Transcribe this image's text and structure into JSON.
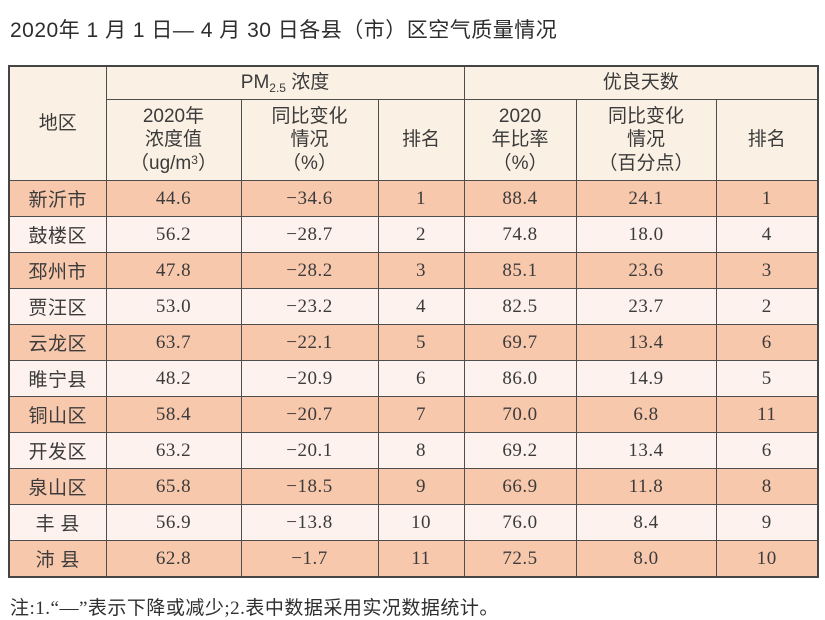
{
  "page": {
    "title": "2020年 1 月 1 日— 4 月 30 日各县（市）区空气质量情况",
    "note": "注:1.“—”表示下降或减少;2.表中数据采用实况数据统计。"
  },
  "colors": {
    "header_bg": "#fbf0e4",
    "row_odd_bg": "#f8c8ad",
    "row_even_bg": "#fdf2ed",
    "border": "#4e4e4e",
    "text": "#3b3b3b"
  },
  "table": {
    "region_header": "地区",
    "pm_group": {
      "prefix": "PM",
      "sub": "2.5",
      "suffix": " 浓度"
    },
    "good_days_group": "优良天数",
    "sub_headers": {
      "pm_value_line1": "2020年",
      "pm_value_line2": "浓度值",
      "unit_prefix": "（ug/m",
      "unit_sup": "3",
      "unit_suffix": "）",
      "pm_change": "同比变化\n情况\n（%）",
      "rank1": "排名",
      "ratio": "2020\n年比率\n（%）",
      "ratio_change": "同比变化\n情况\n（百分点）",
      "rank2": "排名"
    },
    "rows": [
      {
        "region": "新沂市",
        "pm_value": "44.6",
        "pm_change": "−34.6",
        "pm_rank": "1",
        "ratio": "88.4",
        "ratio_change": "24.1",
        "ratio_rank": "1"
      },
      {
        "region": "鼓楼区",
        "pm_value": "56.2",
        "pm_change": "−28.7",
        "pm_rank": "2",
        "ratio": "74.8",
        "ratio_change": "18.0",
        "ratio_rank": "4"
      },
      {
        "region": "邳州市",
        "pm_value": "47.8",
        "pm_change": "−28.2",
        "pm_rank": "3",
        "ratio": "85.1",
        "ratio_change": "23.6",
        "ratio_rank": "3"
      },
      {
        "region": "贾汪区",
        "pm_value": "53.0",
        "pm_change": "−23.2",
        "pm_rank": "4",
        "ratio": "82.5",
        "ratio_change": "23.7",
        "ratio_rank": "2"
      },
      {
        "region": "云龙区",
        "pm_value": "63.7",
        "pm_change": "−22.1",
        "pm_rank": "5",
        "ratio": "69.7",
        "ratio_change": "13.4",
        "ratio_rank": "6"
      },
      {
        "region": "睢宁县",
        "pm_value": "48.2",
        "pm_change": "−20.9",
        "pm_rank": "6",
        "ratio": "86.0",
        "ratio_change": "14.9",
        "ratio_rank": "5"
      },
      {
        "region": "铜山区",
        "pm_value": "58.4",
        "pm_change": "−20.7",
        "pm_rank": "7",
        "ratio": "70.0",
        "ratio_change": "6.8",
        "ratio_rank": "11"
      },
      {
        "region": "开发区",
        "pm_value": "63.2",
        "pm_change": "−20.1",
        "pm_rank": "8",
        "ratio": "69.2",
        "ratio_change": "13.4",
        "ratio_rank": "6"
      },
      {
        "region": "泉山区",
        "pm_value": "65.8",
        "pm_change": "−18.5",
        "pm_rank": "9",
        "ratio": "66.9",
        "ratio_change": "11.8",
        "ratio_rank": "8"
      },
      {
        "region": "丰 县",
        "pm_value": "56.9",
        "pm_change": "−13.8",
        "pm_rank": "10",
        "ratio": "76.0",
        "ratio_change": "8.4",
        "ratio_rank": "9"
      },
      {
        "region": "沛 县",
        "pm_value": "62.8",
        "pm_change": "−1.7",
        "pm_rank": "11",
        "ratio": "72.5",
        "ratio_change": "8.0",
        "ratio_rank": "10"
      }
    ]
  }
}
